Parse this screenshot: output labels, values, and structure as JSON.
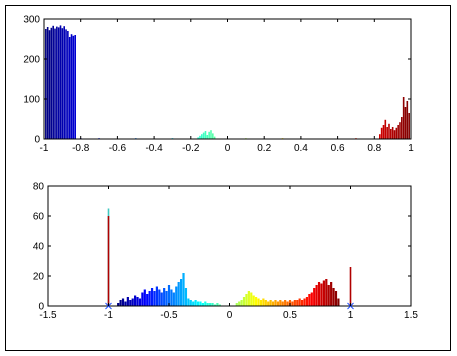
{
  "chart_data": [
    {
      "type": "bar",
      "title": "",
      "xlabel": "",
      "ylabel": "",
      "xlim": [
        -1,
        1
      ],
      "ylim": [
        0,
        300
      ],
      "grid": false,
      "x_ticks": [
        -1,
        -0.8,
        -0.6,
        -0.4,
        -0.2,
        0,
        0.2,
        0.4,
        0.6,
        0.8,
        1
      ],
      "x_tick_labels": [
        "-1",
        "-0.8",
        "-0.6",
        "-0.4",
        "-0.2",
        "0",
        "0.2",
        "0.4",
        "0.6",
        "0.8",
        "1"
      ],
      "y_ticks": [
        0,
        100,
        200,
        300
      ],
      "y_tick_labels": [
        "0",
        "100",
        "200",
        "300"
      ],
      "colormap": "jet",
      "bins": [
        {
          "x": -0.99,
          "y": 275
        },
        {
          "x": -0.98,
          "y": 280
        },
        {
          "x": -0.97,
          "y": 272
        },
        {
          "x": -0.96,
          "y": 278
        },
        {
          "x": -0.95,
          "y": 283
        },
        {
          "x": -0.94,
          "y": 276
        },
        {
          "x": -0.93,
          "y": 281
        },
        {
          "x": -0.92,
          "y": 279
        },
        {
          "x": -0.91,
          "y": 284
        },
        {
          "x": -0.9,
          "y": 277
        },
        {
          "x": -0.89,
          "y": 282
        },
        {
          "x": -0.88,
          "y": 274
        },
        {
          "x": -0.87,
          "y": 270
        },
        {
          "x": -0.86,
          "y": 255
        },
        {
          "x": -0.85,
          "y": 262
        },
        {
          "x": -0.84,
          "y": 258
        },
        {
          "x": -0.83,
          "y": 260
        },
        {
          "x": -0.8,
          "y": 2
        },
        {
          "x": -0.7,
          "y": 2
        },
        {
          "x": -0.6,
          "y": 1
        },
        {
          "x": -0.5,
          "y": 2
        },
        {
          "x": -0.4,
          "y": 1
        },
        {
          "x": -0.3,
          "y": 2
        },
        {
          "x": -0.16,
          "y": 4
        },
        {
          "x": -0.15,
          "y": 8
        },
        {
          "x": -0.14,
          "y": 12
        },
        {
          "x": -0.13,
          "y": 16
        },
        {
          "x": -0.12,
          "y": 20
        },
        {
          "x": -0.11,
          "y": 10
        },
        {
          "x": -0.1,
          "y": 18
        },
        {
          "x": -0.09,
          "y": 22
        },
        {
          "x": -0.08,
          "y": 14
        },
        {
          "x": -0.07,
          "y": 6
        },
        {
          "x": 0.1,
          "y": 2
        },
        {
          "x": 0.3,
          "y": 2
        },
        {
          "x": 0.5,
          "y": 1
        },
        {
          "x": 0.7,
          "y": 2
        },
        {
          "x": 0.83,
          "y": 12
        },
        {
          "x": 0.84,
          "y": 28
        },
        {
          "x": 0.85,
          "y": 35
        },
        {
          "x": 0.86,
          "y": 48
        },
        {
          "x": 0.87,
          "y": 30
        },
        {
          "x": 0.88,
          "y": 38
        },
        {
          "x": 0.89,
          "y": 25
        },
        {
          "x": 0.9,
          "y": 30
        },
        {
          "x": 0.91,
          "y": 22
        },
        {
          "x": 0.92,
          "y": 28
        },
        {
          "x": 0.93,
          "y": 35
        },
        {
          "x": 0.94,
          "y": 42
        },
        {
          "x": 0.95,
          "y": 55
        },
        {
          "x": 0.96,
          "y": 105
        },
        {
          "x": 0.97,
          "y": 80
        },
        {
          "x": 0.98,
          "y": 95
        },
        {
          "x": 0.99,
          "y": 65
        }
      ]
    },
    {
      "type": "bar",
      "title": "",
      "xlabel": "",
      "ylabel": "",
      "xlim": [
        -1.5,
        1.5
      ],
      "ylim": [
        0,
        80
      ],
      "grid": false,
      "x_ticks": [
        -1.5,
        -1,
        -0.5,
        0,
        0.5,
        1,
        1.5
      ],
      "x_tick_labels": [
        "-1.5",
        "-1",
        "-0.5",
        "0",
        "0.5",
        "1",
        "1.5"
      ],
      "y_ticks": [
        0,
        20,
        40,
        60,
        80
      ],
      "y_tick_labels": [
        "0",
        "20",
        "40",
        "60",
        "80"
      ],
      "colormap": "jet",
      "markers": [
        {
          "x": -1,
          "y": 0
        },
        {
          "x": 1,
          "y": 0
        }
      ],
      "spikes": [
        {
          "x": -1.0,
          "y": 65,
          "color": "#40c8c0"
        },
        {
          "x": -1.0,
          "y": 60,
          "color": "#b00000"
        },
        {
          "x": 1.0,
          "y": 26,
          "color": "#b00000"
        }
      ],
      "bins": [
        {
          "x": -0.92,
          "y": 2
        },
        {
          "x": -0.9,
          "y": 4
        },
        {
          "x": -0.88,
          "y": 5
        },
        {
          "x": -0.86,
          "y": 3
        },
        {
          "x": -0.84,
          "y": 6
        },
        {
          "x": -0.82,
          "y": 4
        },
        {
          "x": -0.8,
          "y": 5
        },
        {
          "x": -0.78,
          "y": 7
        },
        {
          "x": -0.76,
          "y": 6
        },
        {
          "x": -0.74,
          "y": 5
        },
        {
          "x": -0.72,
          "y": 9
        },
        {
          "x": -0.7,
          "y": 11
        },
        {
          "x": -0.68,
          "y": 8
        },
        {
          "x": -0.66,
          "y": 10
        },
        {
          "x": -0.64,
          "y": 12
        },
        {
          "x": -0.62,
          "y": 10
        },
        {
          "x": -0.6,
          "y": 13
        },
        {
          "x": -0.58,
          "y": 11
        },
        {
          "x": -0.56,
          "y": 9
        },
        {
          "x": -0.54,
          "y": 12
        },
        {
          "x": -0.52,
          "y": 10
        },
        {
          "x": -0.5,
          "y": 14
        },
        {
          "x": -0.48,
          "y": 11
        },
        {
          "x": -0.46,
          "y": 9
        },
        {
          "x": -0.44,
          "y": 13
        },
        {
          "x": -0.42,
          "y": 16
        },
        {
          "x": -0.4,
          "y": 18
        },
        {
          "x": -0.38,
          "y": 22
        },
        {
          "x": -0.36,
          "y": 12
        },
        {
          "x": -0.34,
          "y": 5
        },
        {
          "x": -0.32,
          "y": 4
        },
        {
          "x": -0.3,
          "y": 3
        },
        {
          "x": -0.28,
          "y": 4
        },
        {
          "x": -0.26,
          "y": 3
        },
        {
          "x": -0.24,
          "y": 3
        },
        {
          "x": -0.22,
          "y": 2
        },
        {
          "x": -0.2,
          "y": 3
        },
        {
          "x": -0.18,
          "y": 2
        },
        {
          "x": -0.16,
          "y": 2
        },
        {
          "x": -0.14,
          "y": 2
        },
        {
          "x": -0.12,
          "y": 1
        },
        {
          "x": -0.1,
          "y": 2
        },
        {
          "x": -0.08,
          "y": 1
        },
        {
          "x": 0.06,
          "y": 2
        },
        {
          "x": 0.08,
          "y": 3
        },
        {
          "x": 0.1,
          "y": 4
        },
        {
          "x": 0.12,
          "y": 6
        },
        {
          "x": 0.14,
          "y": 8
        },
        {
          "x": 0.16,
          "y": 10
        },
        {
          "x": 0.18,
          "y": 9
        },
        {
          "x": 0.2,
          "y": 7
        },
        {
          "x": 0.22,
          "y": 6
        },
        {
          "x": 0.24,
          "y": 5
        },
        {
          "x": 0.26,
          "y": 4
        },
        {
          "x": 0.28,
          "y": 5
        },
        {
          "x": 0.3,
          "y": 4
        },
        {
          "x": 0.32,
          "y": 3
        },
        {
          "x": 0.34,
          "y": 4
        },
        {
          "x": 0.36,
          "y": 3
        },
        {
          "x": 0.38,
          "y": 4
        },
        {
          "x": 0.4,
          "y": 3
        },
        {
          "x": 0.42,
          "y": 4
        },
        {
          "x": 0.44,
          "y": 3
        },
        {
          "x": 0.46,
          "y": 4
        },
        {
          "x": 0.48,
          "y": 3
        },
        {
          "x": 0.5,
          "y": 4
        },
        {
          "x": 0.52,
          "y": 3
        },
        {
          "x": 0.54,
          "y": 4
        },
        {
          "x": 0.56,
          "y": 4
        },
        {
          "x": 0.58,
          "y": 5
        },
        {
          "x": 0.6,
          "y": 4
        },
        {
          "x": 0.62,
          "y": 5
        },
        {
          "x": 0.64,
          "y": 6
        },
        {
          "x": 0.66,
          "y": 8
        },
        {
          "x": 0.68,
          "y": 9
        },
        {
          "x": 0.7,
          "y": 12
        },
        {
          "x": 0.72,
          "y": 14
        },
        {
          "x": 0.74,
          "y": 16
        },
        {
          "x": 0.76,
          "y": 15
        },
        {
          "x": 0.78,
          "y": 17
        },
        {
          "x": 0.8,
          "y": 18
        },
        {
          "x": 0.82,
          "y": 14
        },
        {
          "x": 0.84,
          "y": 16
        },
        {
          "x": 0.86,
          "y": 12
        },
        {
          "x": 0.88,
          "y": 10
        },
        {
          "x": 0.9,
          "y": 5
        }
      ]
    }
  ]
}
